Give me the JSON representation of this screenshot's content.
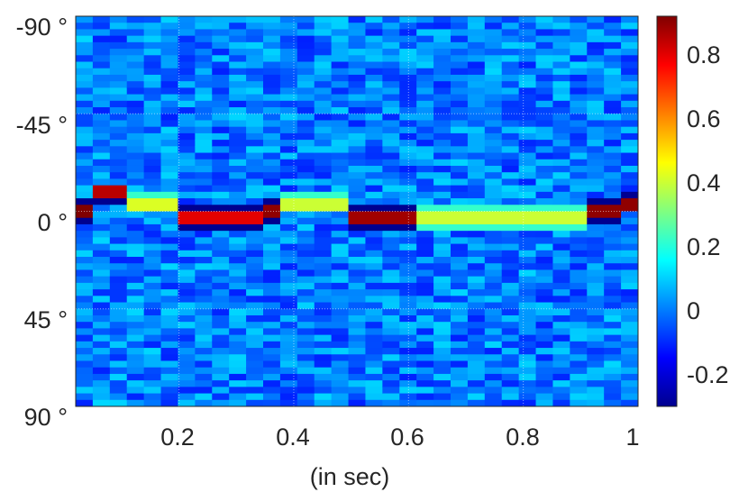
{
  "chart_data": {
    "type": "heatmap",
    "title": "",
    "xlabel": "(in sec)",
    "ylabel": "",
    "xlim": [
      0.02,
      1.0
    ],
    "ylim": [
      -90,
      90
    ],
    "y_direction": "reversed",
    "x_ticks": [
      "0.2",
      "0.4",
      "0.6",
      "0.8",
      "1"
    ],
    "x_tick_values": [
      0.2,
      0.4,
      0.6,
      0.8,
      1.0
    ],
    "y_ticks": [
      "-90 °",
      "-45 °",
      "0 °",
      "45 °",
      "90 °"
    ],
    "y_tick_values": [
      -90,
      -45,
      0,
      45,
      90
    ],
    "grid": true,
    "colormap": "jet",
    "colorbar": {
      "ticks": [
        "-0.2",
        "0",
        "0.2",
        "0.4",
        "0.6",
        "0.8"
      ],
      "tick_values": [
        -0.2,
        0,
        0.2,
        0.4,
        0.6,
        0.8
      ],
      "range": [
        -0.3,
        0.92
      ]
    },
    "background_level": 0.0,
    "ridge": [
      {
        "t_start": 0.02,
        "t_end": 0.06,
        "angle": 0,
        "value": 0.92,
        "edge": "sharp"
      },
      {
        "t_start": 0.06,
        "t_end": 0.1,
        "angle": -8,
        "value": 0.85,
        "edge": "sharp"
      },
      {
        "t_start": 0.1,
        "t_end": 0.2,
        "angle": -4,
        "value": 0.42,
        "edge": "soft"
      },
      {
        "t_start": 0.2,
        "t_end": 0.36,
        "angle": 3,
        "value": 0.8,
        "edge": "sharp"
      },
      {
        "t_start": 0.36,
        "t_end": 0.38,
        "angle": 0,
        "value": 0.9,
        "edge": "sharp"
      },
      {
        "t_start": 0.38,
        "t_end": 0.5,
        "angle": -4,
        "value": 0.4,
        "edge": "soft"
      },
      {
        "t_start": 0.5,
        "t_end": 0.62,
        "angle": 3,
        "value": 0.88,
        "edge": "sharp"
      },
      {
        "t_start": 0.62,
        "t_end": 0.92,
        "angle": 3,
        "value": 0.4,
        "edge": "soft"
      },
      {
        "t_start": 0.92,
        "t_end": 0.96,
        "angle": 0,
        "value": 0.9,
        "edge": "sharp"
      },
      {
        "t_start": 0.96,
        "t_end": 0.98,
        "angle": -8,
        "value": 0.88,
        "edge": "sharp"
      },
      {
        "t_start": 0.98,
        "t_end": 1.0,
        "angle": -4,
        "value": 0.9,
        "edge": "sharp"
      }
    ]
  }
}
